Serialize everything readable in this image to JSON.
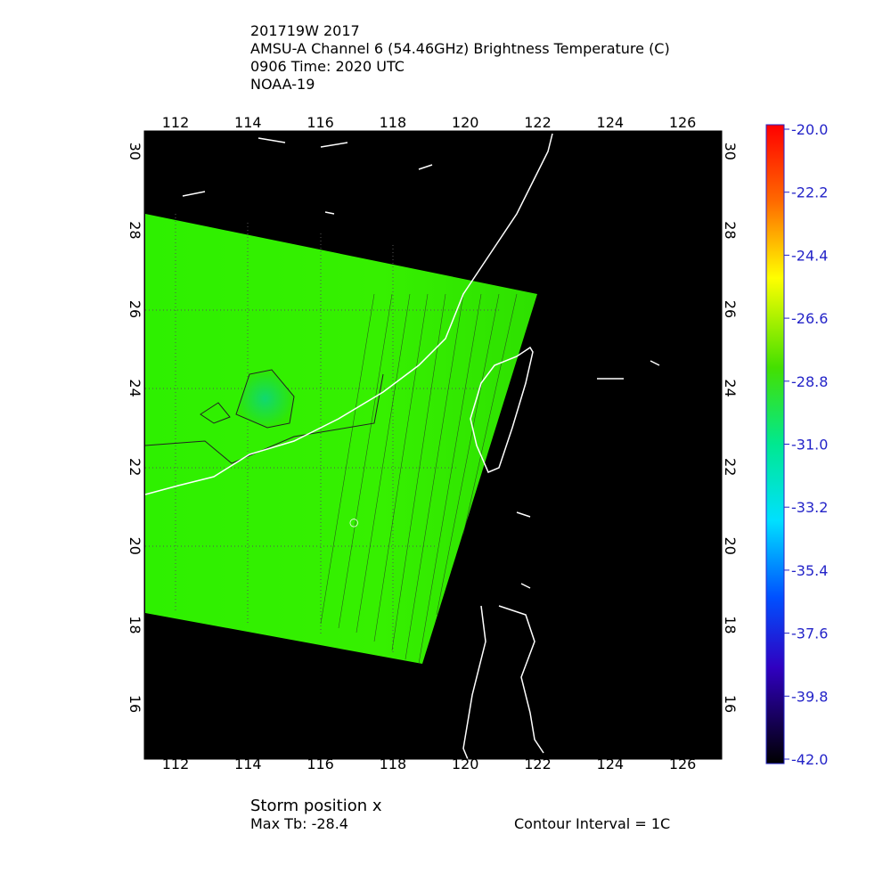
{
  "header": {
    "lines": [
      "201719W 2017",
      "AMSU-A Channel 6 (54.46GHz) Brightness Temperature (C)",
      "0906 Time: 2020 UTC",
      "NOAA-19"
    ]
  },
  "map": {
    "lon_labels": [
      "112",
      "114",
      "116",
      "118",
      "120",
      "122",
      "124",
      "126"
    ],
    "lat_labels": [
      "16",
      "18",
      "20",
      "22",
      "24",
      "26",
      "28",
      "30"
    ]
  },
  "colorbar": {
    "labels": [
      "-20.0",
      "-22.2",
      "-24.4",
      "-26.6",
      "-28.8",
      "-31.0",
      "-33.2",
      "-35.4",
      "-37.6",
      "-39.8",
      "-42.0"
    ]
  },
  "footer": {
    "storm_position": "Storm position x",
    "max_tb": "Max Tb: -28.4",
    "contour_interval": "Contour Interval = 1C"
  }
}
